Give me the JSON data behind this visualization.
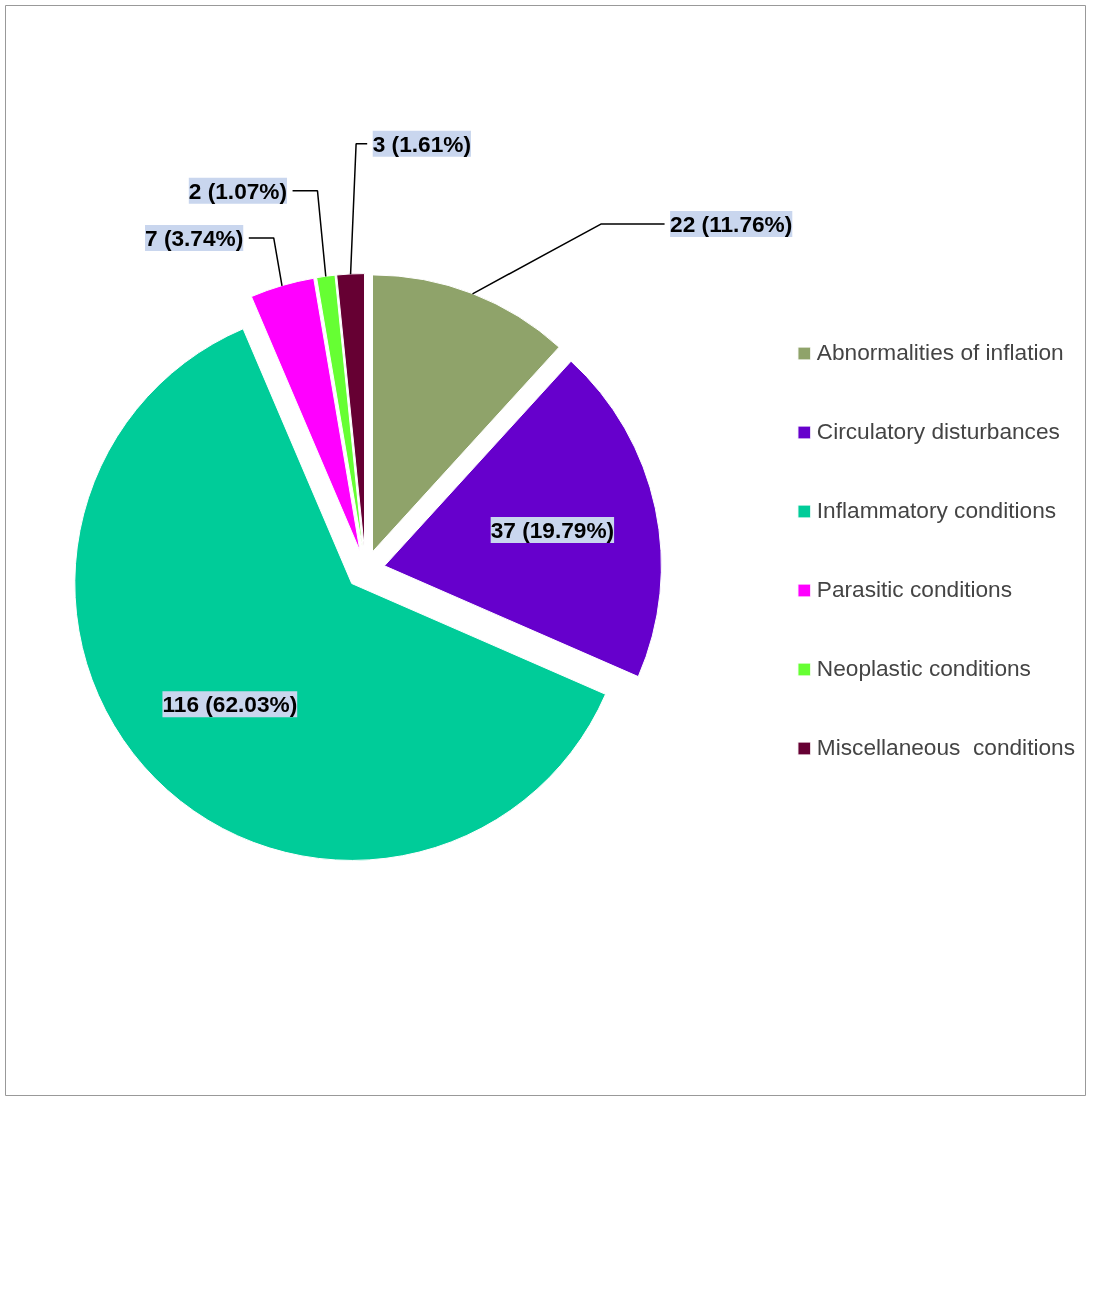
{
  "chart_data": {
    "type": "pie",
    "categories": [
      "Abnormalities of inflation",
      "Circulatory disturbances",
      "Inflammatory conditions",
      "Parasitic conditions",
      "Neoplastic conditions",
      "Miscellaneous  conditions"
    ],
    "values": [
      22,
      37,
      116,
      7,
      2,
      3
    ],
    "value_labels": [
      "22 (11.76%)",
      "37 (19.79%)",
      "116 (62.03%)",
      "7 (3.74%)",
      "2 (1.07%)",
      "3 (1.61%)"
    ],
    "colors": [
      "#8fa36a",
      "#6600cc",
      "#00cc99",
      "#ff00ff",
      "#66ff33",
      "#660033"
    ],
    "legend": "right"
  }
}
